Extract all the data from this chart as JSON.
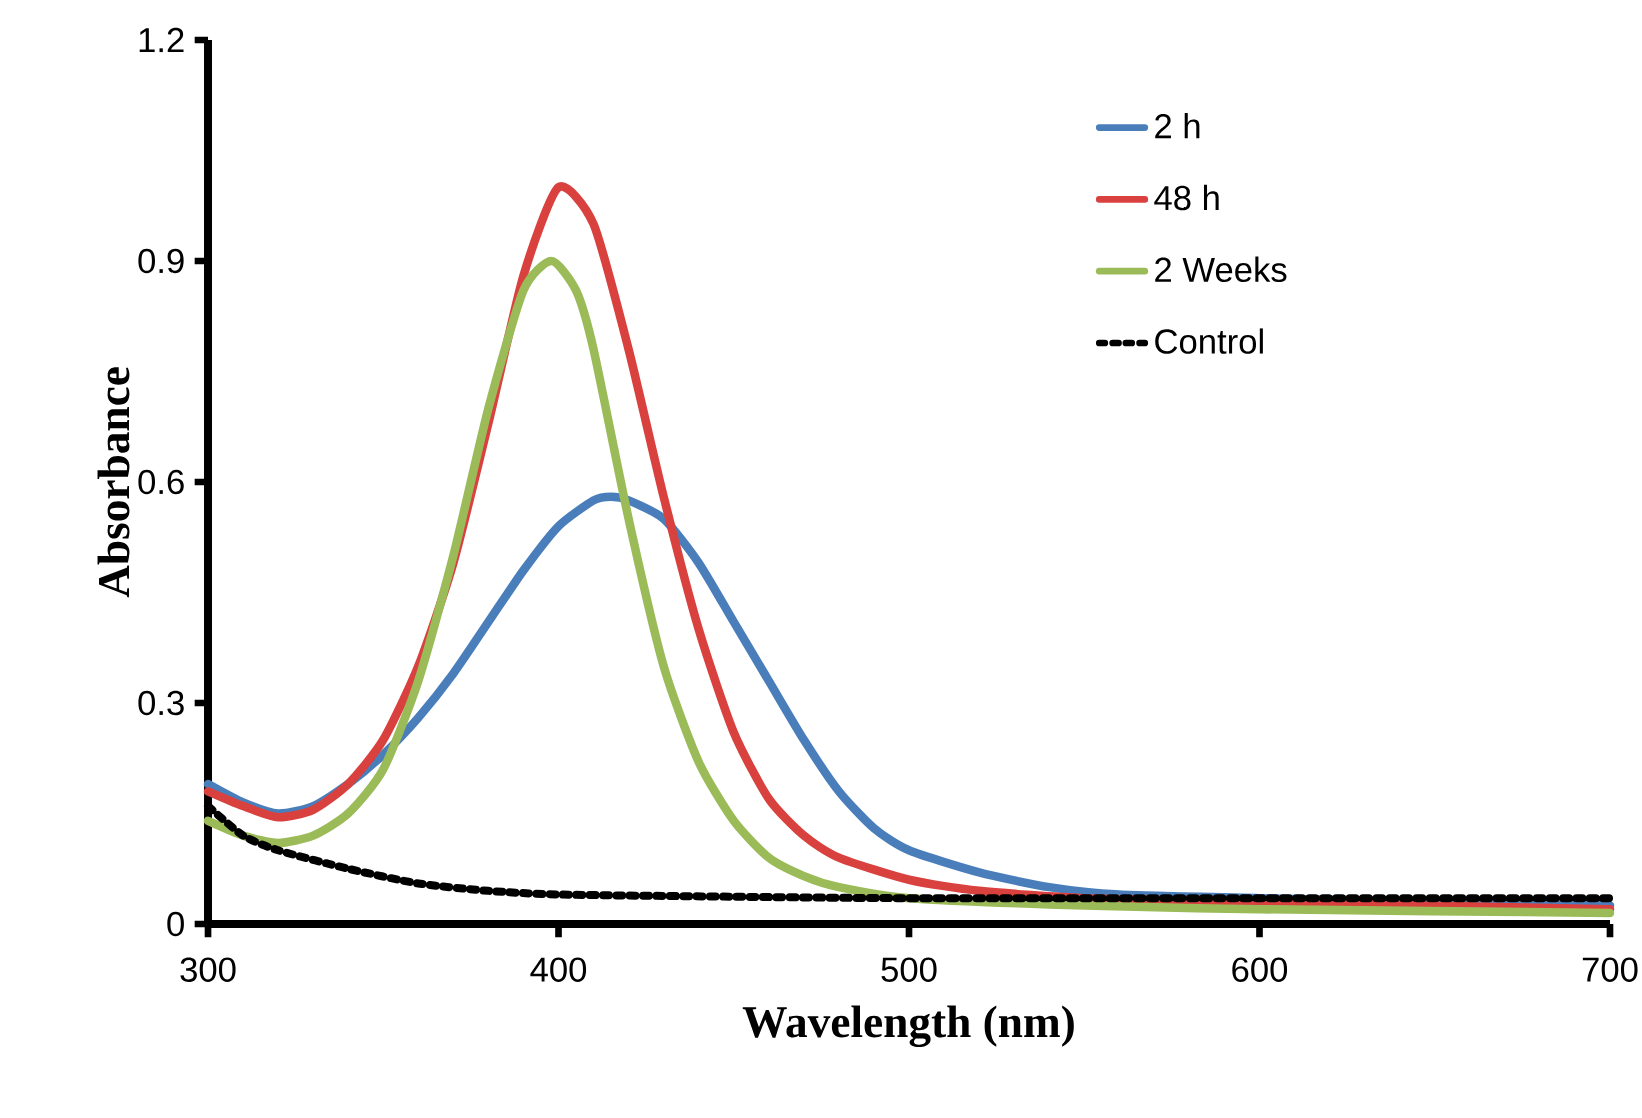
{
  "chart_data": {
    "type": "line",
    "xlabel": "Wavelength (nm)",
    "ylabel": "Absorbance",
    "xlim": [
      300,
      700
    ],
    "xticks": [
      300,
      400,
      500,
      600,
      700
    ],
    "ylim": [
      0,
      1.2
    ],
    "yticks": [
      0,
      0.3,
      0.6,
      0.9,
      1.2
    ],
    "grid": false,
    "legend": "top right",
    "marker": "none",
    "line_style": "solid",
    "series": [
      {
        "name": "2 h",
        "color": "#4a7ebb",
        "x": [
          300,
          310,
          320,
          330,
          340,
          350,
          360,
          370,
          380,
          390,
          400,
          410,
          415,
          420,
          430,
          440,
          450,
          460,
          470,
          480,
          490,
          500,
          520,
          540,
          560,
          600,
          650,
          700
        ],
        "values": [
          0.19,
          0.165,
          0.15,
          0.16,
          0.19,
          0.23,
          0.28,
          0.34,
          0.41,
          0.48,
          0.54,
          0.575,
          0.58,
          0.575,
          0.55,
          0.49,
          0.41,
          0.33,
          0.25,
          0.18,
          0.13,
          0.1,
          0.07,
          0.05,
          0.04,
          0.035,
          0.03,
          0.025
        ]
      },
      {
        "name": "48 h",
        "color": "#d9413f",
        "x": [
          300,
          310,
          320,
          330,
          340,
          350,
          360,
          370,
          380,
          390,
          400,
          410,
          420,
          430,
          440,
          450,
          460,
          470,
          480,
          500,
          520,
          550,
          600,
          700
        ],
        "values": [
          0.18,
          0.16,
          0.145,
          0.155,
          0.19,
          0.25,
          0.35,
          0.49,
          0.68,
          0.88,
          1.0,
          0.95,
          0.78,
          0.58,
          0.4,
          0.26,
          0.17,
          0.12,
          0.09,
          0.06,
          0.045,
          0.035,
          0.03,
          0.02
        ]
      },
      {
        "name": "2 Weeks",
        "color": "#9bbb59",
        "x": [
          300,
          310,
          320,
          330,
          340,
          350,
          360,
          370,
          380,
          390,
          398,
          405,
          410,
          420,
          430,
          440,
          450,
          460,
          470,
          480,
          500,
          550,
          600,
          700
        ],
        "values": [
          0.14,
          0.12,
          0.11,
          0.12,
          0.15,
          0.21,
          0.33,
          0.5,
          0.7,
          0.86,
          0.9,
          0.86,
          0.78,
          0.55,
          0.35,
          0.22,
          0.14,
          0.09,
          0.065,
          0.05,
          0.035,
          0.025,
          0.02,
          0.015
        ]
      },
      {
        "name": "Control",
        "color": "#000000",
        "line_style": "dotted",
        "x": [
          300,
          310,
          320,
          340,
          360,
          380,
          400,
          450,
          500,
          600,
          700
        ],
        "values": [
          0.16,
          0.12,
          0.1,
          0.075,
          0.055,
          0.045,
          0.04,
          0.037,
          0.035,
          0.035,
          0.035
        ]
      }
    ]
  }
}
